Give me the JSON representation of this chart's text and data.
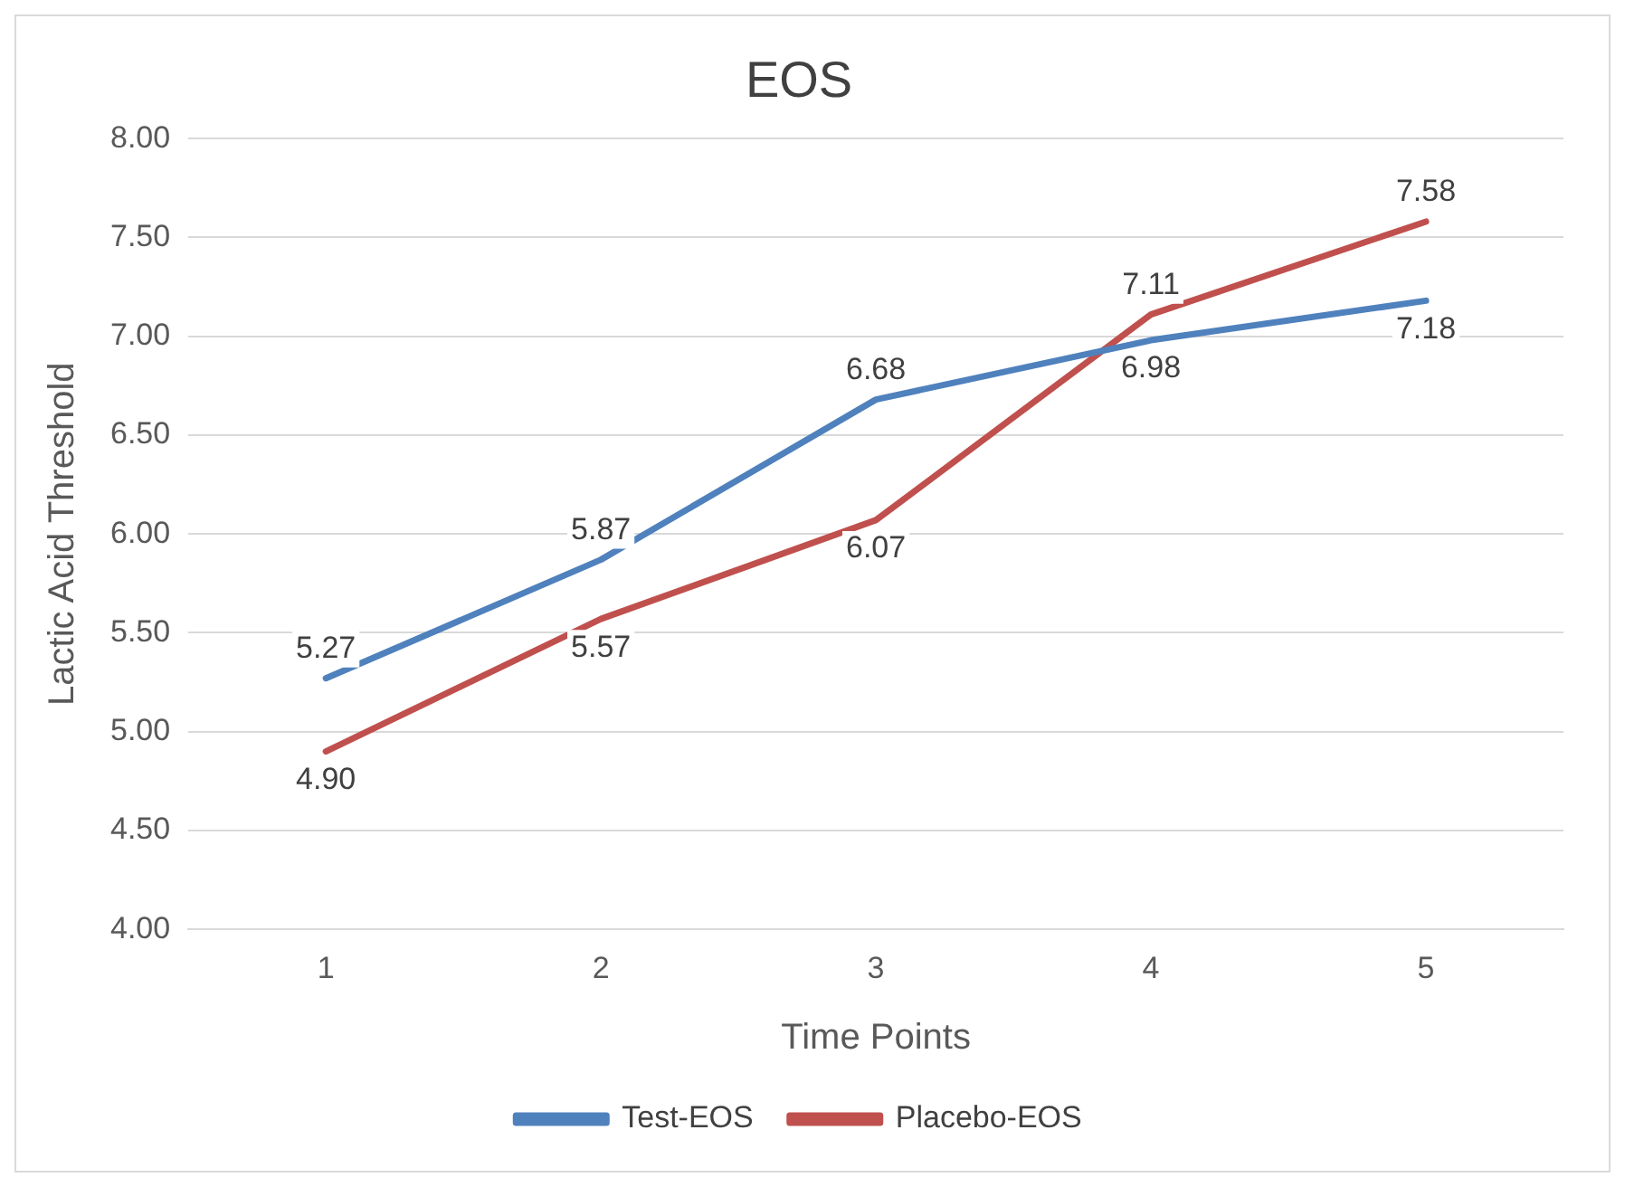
{
  "chart_data": {
    "type": "line",
    "title": "EOS",
    "xlabel": "Time Points",
    "ylabel": "Lactic Acid Threshold",
    "categories": [
      "1",
      "2",
      "3",
      "4",
      "5"
    ],
    "series": [
      {
        "name": "Test-EOS",
        "color": "#4f81bd",
        "values": [
          5.27,
          5.87,
          6.68,
          6.98,
          7.18
        ],
        "value_labels": [
          "5.27",
          "5.87",
          "6.68",
          "6.98",
          "7.18"
        ]
      },
      {
        "name": "Placebo-EOS",
        "color": "#c0504d",
        "values": [
          4.9,
          5.57,
          6.07,
          7.11,
          7.58
        ],
        "value_labels": [
          "4.90",
          "5.57",
          "6.07",
          "7.11",
          "7.58"
        ]
      }
    ],
    "ylim": [
      4,
      8
    ],
    "yticks": [
      {
        "value": 4,
        "label": "4.00"
      },
      {
        "value": 4.5,
        "label": "4.50"
      },
      {
        "value": 5,
        "label": "5.00"
      },
      {
        "value": 5.5,
        "label": "5.50"
      },
      {
        "value": 6,
        "label": "6.00"
      },
      {
        "value": 6.5,
        "label": "6.50"
      },
      {
        "value": 7,
        "label": "7.00"
      },
      {
        "value": 7.5,
        "label": "7.50"
      },
      {
        "value": 8,
        "label": "8.00"
      }
    ],
    "grid": "y",
    "legend": "bottom",
    "marker": "none",
    "line_style": "solid"
  }
}
